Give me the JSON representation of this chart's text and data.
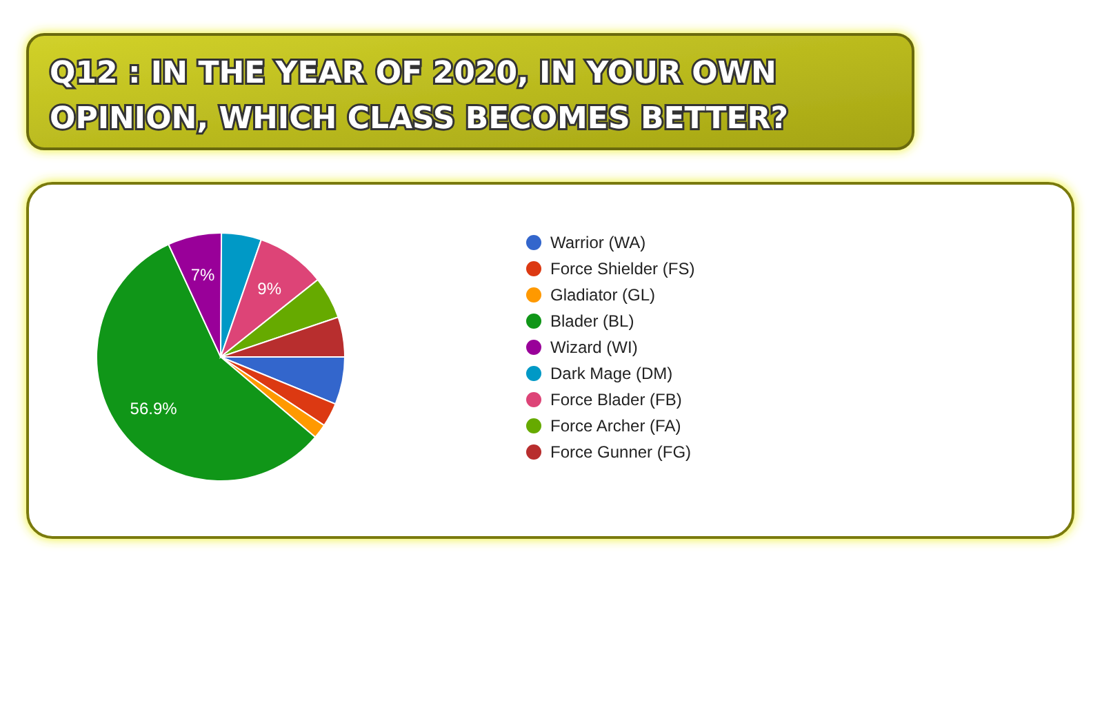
{
  "chart_data": {
    "type": "pie",
    "title": "Q12 : IN THE YEAR OF 2020, IN YOUR OWN OPINION, WHICH CLASS BECOMES BETTER?",
    "categories": [
      "Warrior (WA)",
      "Force Shielder (FS)",
      "Gladiator (GL)",
      "Blader (BL)",
      "Wizard (WI)",
      "Dark Mage (DM)",
      "Force Blader (FB)",
      "Force Archer (FA)",
      "Force Gunner (FG)"
    ],
    "values": [
      6.2,
      3.1,
      1.9,
      56.9,
      7,
      5.2,
      9,
      5.5,
      5.2
    ],
    "colors": [
      "#3366cc",
      "#dc3912",
      "#ff9900",
      "#109618",
      "#990099",
      "#0099c6",
      "#dd4477",
      "#66aa00",
      "#b82e2e"
    ],
    "value_labels": [
      null,
      null,
      null,
      "56.9%",
      "7%",
      null,
      "9%",
      null,
      null
    ],
    "legend": "right"
  }
}
